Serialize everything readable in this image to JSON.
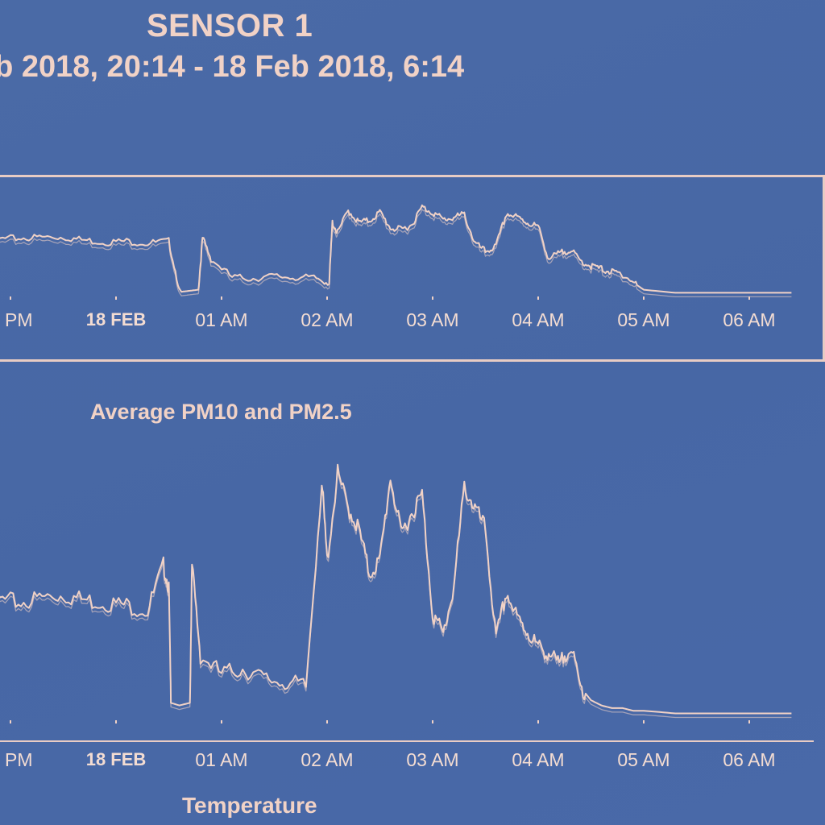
{
  "header": {
    "title": "SENSOR 1",
    "date_range": "eb 2018, 20:14 - 18 Feb 2018, 6:14"
  },
  "colors": {
    "background": "#4767a5",
    "line": "#f1d2c6",
    "text": "#f1d2c6"
  },
  "chart_data": [
    {
      "type": "line",
      "title": "",
      "x_tick_labels": [
        "PM",
        "18 FEB",
        "01 AM",
        "02 AM",
        "03 AM",
        "04 AM",
        "05 AM",
        "06 AM"
      ],
      "x_tick_hours": [
        23.0,
        24.0,
        25.0,
        26.0,
        27.0,
        28.0,
        29.0,
        30.0
      ],
      "grid": false,
      "series": [
        {
          "x": [
            22.1,
            22.3,
            22.5,
            22.7,
            22.9,
            23.1,
            23.3,
            23.5,
            23.7,
            23.9,
            24.1,
            24.3,
            24.5,
            24.6,
            24.62,
            24.7,
            24.78,
            24.82,
            24.9,
            25.1,
            25.3,
            25.5,
            25.7,
            25.9,
            26.02,
            26.05,
            26.1,
            26.2,
            26.3,
            26.4,
            26.5,
            26.6,
            26.7,
            26.8,
            26.9,
            27.0,
            27.1,
            27.2,
            27.3,
            27.4,
            27.5,
            27.6,
            27.7,
            27.8,
            27.9,
            28.0,
            28.1,
            28.2,
            28.3,
            28.4,
            28.5,
            28.6,
            28.7,
            28.8,
            28.9,
            29.0,
            29.3,
            29.6,
            29.9,
            30.2,
            30.4
          ],
          "y": [
            0.6,
            0.58,
            0.55,
            0.57,
            0.54,
            0.55,
            0.56,
            0.56,
            0.53,
            0.51,
            0.52,
            0.5,
            0.52,
            0.06,
            0.03,
            0.04,
            0.05,
            0.55,
            0.35,
            0.17,
            0.16,
            0.18,
            0.17,
            0.16,
            0.12,
            0.7,
            0.6,
            0.82,
            0.7,
            0.72,
            0.8,
            0.65,
            0.63,
            0.68,
            0.85,
            0.8,
            0.73,
            0.75,
            0.78,
            0.5,
            0.42,
            0.47,
            0.79,
            0.75,
            0.7,
            0.66,
            0.35,
            0.4,
            0.44,
            0.33,
            0.28,
            0.25,
            0.22,
            0.2,
            0.12,
            0.05,
            0.02,
            0.02,
            0.02,
            0.02,
            0.02
          ]
        }
      ]
    },
    {
      "type": "line",
      "title": "Average PM10 and PM2.5",
      "x_tick_labels": [
        "PM",
        "18 FEB",
        "01 AM",
        "02 AM",
        "03 AM",
        "04 AM",
        "05 AM",
        "06 AM"
      ],
      "x_tick_hours": [
        23.0,
        24.0,
        25.0,
        26.0,
        27.0,
        28.0,
        29.0,
        30.0
      ],
      "grid": false,
      "series": [
        {
          "x": [
            22.1,
            22.3,
            22.5,
            22.7,
            22.9,
            23.1,
            23.3,
            23.5,
            23.7,
            23.9,
            24.1,
            24.3,
            24.45,
            24.5,
            24.52,
            24.6,
            24.7,
            24.72,
            24.8,
            25.0,
            25.2,
            25.4,
            25.6,
            25.8,
            25.95,
            26.0,
            26.1,
            26.2,
            26.3,
            26.4,
            26.5,
            26.6,
            26.7,
            26.8,
            26.9,
            27.0,
            27.1,
            27.2,
            27.3,
            27.4,
            27.5,
            27.6,
            27.7,
            27.8,
            27.9,
            28.0,
            28.1,
            28.2,
            28.3,
            28.4,
            28.5,
            28.6,
            28.7,
            28.8,
            28.9,
            29.0,
            29.3,
            29.6,
            29.9,
            30.2,
            30.4
          ],
          "y": [
            0.42,
            0.48,
            0.56,
            0.52,
            0.45,
            0.44,
            0.46,
            0.47,
            0.45,
            0.44,
            0.43,
            0.41,
            0.58,
            0.5,
            0.06,
            0.05,
            0.06,
            0.58,
            0.24,
            0.17,
            0.19,
            0.15,
            0.14,
            0.12,
            0.9,
            0.6,
            0.93,
            0.8,
            0.72,
            0.55,
            0.6,
            0.92,
            0.7,
            0.78,
            0.85,
            0.4,
            0.32,
            0.5,
            0.88,
            0.8,
            0.72,
            0.3,
            0.48,
            0.38,
            0.33,
            0.27,
            0.25,
            0.2,
            0.28,
            0.12,
            0.07,
            0.05,
            0.04,
            0.04,
            0.03,
            0.03,
            0.02,
            0.02,
            0.02,
            0.02,
            0.02
          ]
        }
      ]
    }
  ],
  "charts": {
    "bottom_title": "Average PM10 and PM2.5",
    "next_title": "Temperature"
  }
}
